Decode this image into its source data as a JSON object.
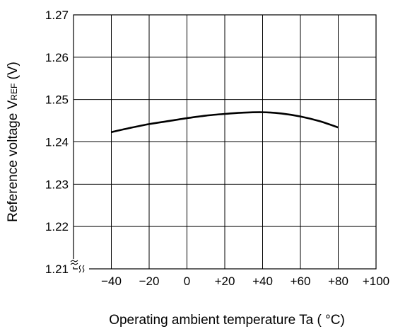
{
  "chart_data": {
    "type": "line",
    "title": "",
    "xlabel": "Operating ambient temperature Ta ( °C)",
    "ylabel": {
      "main": "Reference voltage V",
      "subscript": "REF",
      "unit": "  (V)"
    },
    "xlim": [
      -60,
      100
    ],
    "ylim": [
      1.21,
      1.27
    ],
    "x_ticks": [
      -40,
      -20,
      0,
      20,
      40,
      60,
      80,
      100
    ],
    "x_tick_labels": [
      "−40",
      "−20",
      "0",
      "+20",
      "+40",
      "+60",
      "+80",
      "+100"
    ],
    "y_ticks": [
      1.21,
      1.22,
      1.23,
      1.24,
      1.25,
      1.26,
      1.27
    ],
    "y_tick_labels": [
      "1.21",
      "1.22",
      "1.23",
      "1.24",
      "1.25",
      "1.26",
      "1.27"
    ],
    "grid": true,
    "axis_breaks": true,
    "series": [
      {
        "color": "#000000",
        "x": [
          -40,
          -30,
          -20,
          -10,
          0,
          10,
          20,
          30,
          40,
          50,
          60,
          70,
          80
        ],
        "y": [
          1.2423,
          1.2433,
          1.2442,
          1.2449,
          1.2456,
          1.2462,
          1.2466,
          1.2469,
          1.247,
          1.2467,
          1.246,
          1.2449,
          1.2434
        ]
      }
    ]
  }
}
